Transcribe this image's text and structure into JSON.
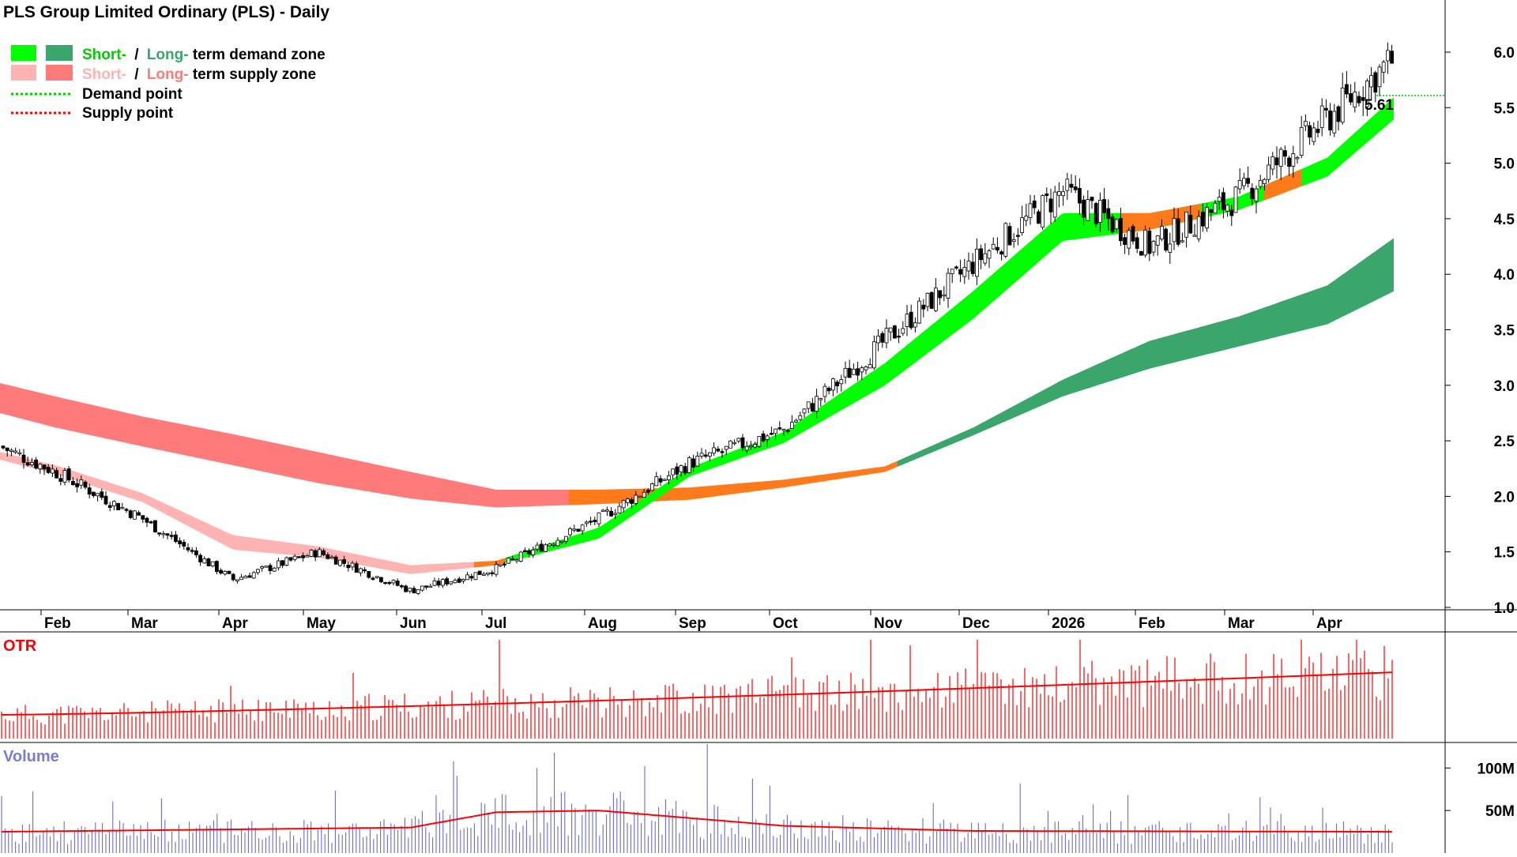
{
  "title": "PLS Group Limited Ordinary (PLS) - Daily",
  "legend": {
    "demand_short": "Short-",
    "slash": "/",
    "demand_long": "Long-",
    "demand_rest": "term demand zone",
    "supply_short": "Short-",
    "supply_long": "Long-",
    "supply_rest": "term supply zone",
    "demand_point": "Demand point",
    "supply_point": "Supply point"
  },
  "colors": {
    "short_demand": "#00ff00",
    "long_demand": "#3aa66c",
    "short_supply": "#ffb3b3",
    "long_supply": "#ff7b7b",
    "transition": "#ff7a1a",
    "otr": "#ff0000",
    "volume": "#6a6ad0",
    "volume_ma": "#ff0000",
    "demand_point": "#00cc00",
    "candle": "#000000"
  },
  "chart_data": [
    {
      "type": "candlestick",
      "panel": "price",
      "title": "PLS Group Limited Ordinary (PLS) - Daily",
      "x_labels": [
        "Feb",
        "Mar",
        "Apr",
        "May",
        "Jun",
        "Jul",
        "Aug",
        "Sep",
        "Oct",
        "Nov",
        "Dec",
        "2026",
        "Feb",
        "Mar",
        "Apr"
      ],
      "y_ticks": [
        "1.0",
        "1.5",
        "2.0",
        "2.5",
        "3.0",
        "3.5",
        "4.0",
        "4.5",
        "5.0",
        "5.5",
        "6.0"
      ],
      "ylim": [
        0.95,
        6.2
      ],
      "close_points": [
        [
          "Jan",
          2.45
        ],
        [
          "Feb",
          2.22
        ],
        [
          "Mar",
          1.8
        ],
        [
          "Apr",
          1.25
        ],
        [
          "May",
          1.5
        ],
        [
          "Jun",
          1.15
        ],
        [
          "Jul",
          1.35
        ],
        [
          "Aug",
          1.8
        ],
        [
          "Sep",
          2.3
        ],
        [
          "Oct",
          2.6
        ],
        [
          "Nov",
          3.4
        ],
        [
          "Dec",
          4.1
        ],
        [
          "2026",
          4.75
        ],
        [
          "Feb",
          4.25
        ],
        [
          "Mar",
          4.7
        ],
        [
          "Apr",
          5.4
        ],
        [
          "latest",
          5.95
        ]
      ],
      "short_term_zone": [
        [
          "Jan",
          2.33,
          2.4
        ],
        [
          "Feb",
          2.2,
          2.28
        ],
        [
          "Mar",
          1.95,
          2.03
        ],
        [
          "Apr",
          1.52,
          1.65
        ],
        [
          "May",
          1.45,
          1.55
        ],
        [
          "Jun",
          1.3,
          1.38
        ],
        [
          "Jul",
          1.38,
          1.42
        ],
        [
          "Aug",
          1.62,
          1.72
        ],
        [
          "Sep",
          2.18,
          2.26
        ],
        [
          "Oct",
          2.48,
          2.58
        ],
        [
          "Nov",
          3.0,
          3.2
        ],
        [
          "Dec",
          3.6,
          3.85
        ],
        [
          "2026",
          4.3,
          4.55
        ],
        [
          "Feb",
          4.4,
          4.55
        ],
        [
          "Mar",
          4.58,
          4.7
        ],
        [
          "Apr",
          4.88,
          5.05
        ],
        [
          "latest",
          5.4,
          5.6
        ]
      ],
      "long_term_zone": [
        [
          "Jan",
          2.75,
          3.02
        ],
        [
          "Feb",
          2.62,
          2.9
        ],
        [
          "Mar",
          2.45,
          2.72
        ],
        [
          "Apr",
          2.28,
          2.56
        ],
        [
          "May",
          2.12,
          2.4
        ],
        [
          "Jun",
          1.98,
          2.22
        ],
        [
          "Jul",
          1.9,
          2.06
        ],
        [
          "Aug",
          1.93,
          2.06
        ],
        [
          "Sep",
          1.97,
          2.08
        ],
        [
          "Oct",
          2.08,
          2.15
        ],
        [
          "Nov",
          2.22,
          2.27
        ],
        [
          "Dec",
          2.55,
          2.62
        ],
        [
          "2026",
          2.9,
          3.05
        ],
        [
          "Feb",
          3.15,
          3.4
        ],
        [
          "Mar",
          3.35,
          3.62
        ],
        [
          "Apr",
          3.55,
          3.9
        ],
        [
          "latest",
          3.85,
          4.33
        ]
      ],
      "demand_point": 5.61,
      "demand_point_label": "5.61"
    },
    {
      "type": "bar",
      "panel": "otr",
      "title": "OTR",
      "trend": "rising",
      "average_start": 0.15,
      "average_end": 0.42
    },
    {
      "type": "bar",
      "panel": "volume",
      "title": "Volume",
      "y_ticks": [
        "100M",
        "50M"
      ],
      "ylim": [
        0,
        130
      ],
      "unit": "M",
      "average_line": [
        [
          "Jan",
          25
        ],
        [
          "Jul",
          30
        ],
        [
          "Aug",
          48
        ],
        [
          "Sep",
          50
        ],
        [
          "Nov",
          32
        ],
        [
          "2026",
          26
        ],
        [
          "Apr",
          25
        ]
      ],
      "spikes": [
        [
          "Jul",
          108
        ],
        [
          "Aug",
          118
        ],
        [
          "Sep",
          128
        ],
        [
          "Dec",
          82
        ],
        [
          "Mar",
          46
        ]
      ]
    }
  ]
}
